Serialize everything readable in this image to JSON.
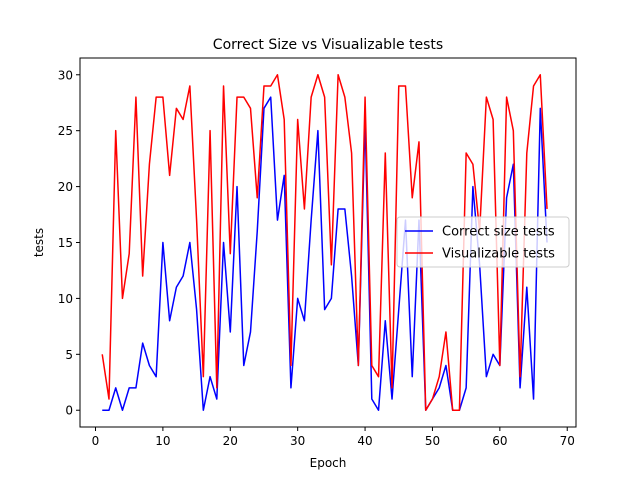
{
  "chart_data": {
    "type": "line",
    "title": "Correct Size vs Visualizable tests",
    "xlabel": "Epoch",
    "ylabel": "tests",
    "xlim": [
      -2.3,
      71.3
    ],
    "ylim": [
      -1.5,
      31.5
    ],
    "xticks": [
      0,
      10,
      20,
      30,
      40,
      50,
      60,
      70
    ],
    "yticks": [
      0,
      5,
      10,
      15,
      20,
      25,
      30
    ],
    "grid": false,
    "legend": "center-right",
    "x": [
      1,
      2,
      3,
      4,
      5,
      6,
      7,
      8,
      9,
      10,
      11,
      12,
      13,
      14,
      15,
      16,
      17,
      18,
      19,
      20,
      21,
      22,
      23,
      24,
      25,
      26,
      27,
      28,
      29,
      30,
      31,
      32,
      33,
      34,
      35,
      36,
      37,
      38,
      39,
      40,
      41,
      42,
      43,
      44,
      45,
      46,
      47,
      48,
      49,
      50,
      51,
      52,
      53,
      54,
      55,
      56,
      57,
      58,
      59,
      60,
      61,
      62,
      63,
      64,
      65,
      66,
      67
    ],
    "series": [
      {
        "name": "Correct size tests",
        "color": "#0000ff",
        "values": [
          0,
          0,
          2,
          0,
          2,
          2,
          6,
          4,
          3,
          15,
          8,
          11,
          12,
          15,
          9,
          0,
          3,
          1,
          15,
          7,
          20,
          4,
          7,
          16,
          27,
          28,
          17,
          21,
          2,
          10,
          8,
          17,
          25,
          9,
          10,
          18,
          18,
          12,
          4,
          26,
          1,
          0,
          8,
          1,
          9,
          17,
          3,
          17,
          0,
          1,
          2,
          4,
          0,
          0,
          2,
          20,
          13,
          3,
          5,
          4,
          19,
          22,
          2,
          11,
          1,
          27,
          15
        ]
      },
      {
        "name": "Visualizable tests",
        "color": "#ff0000",
        "values": [
          5,
          1,
          25,
          10,
          14,
          28,
          12,
          22,
          28,
          28,
          21,
          27,
          26,
          29,
          17,
          3,
          25,
          2,
          29,
          14,
          28,
          28,
          27,
          19,
          29,
          29,
          30,
          26,
          4,
          26,
          18,
          28,
          30,
          28,
          13,
          30,
          28,
          23,
          4,
          28,
          4,
          3,
          23,
          2,
          29,
          29,
          19,
          24,
          0,
          1,
          3,
          7,
          0,
          0,
          23,
          22,
          16,
          28,
          26,
          4,
          28,
          25,
          3,
          23,
          29,
          30,
          18
        ]
      }
    ]
  }
}
